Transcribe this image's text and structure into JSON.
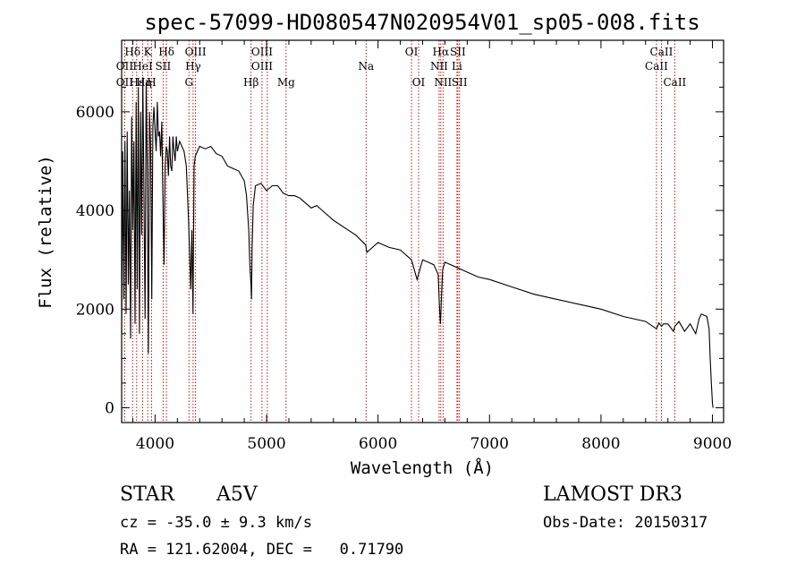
{
  "chart_data": {
    "type": "line",
    "title": "spec-57099-HD080547N020954V01_sp05-008.fits",
    "xlabel": "Wavelength (Å)",
    "ylabel": "Flux (relative)",
    "xlim": [
      3700,
      9100
    ],
    "ylim": [
      -300,
      7450
    ],
    "x_ticks": [
      4000,
      5000,
      6000,
      7000,
      8000,
      9000
    ],
    "x_tick_labels": [
      "4000",
      "5000",
      "6000",
      "7000",
      "8000",
      "9000"
    ],
    "y_ticks": [
      0,
      2000,
      4000,
      6000
    ],
    "y_tick_labels": [
      "0",
      "2000",
      "4000",
      "6000"
    ],
    "grid": false,
    "series": [
      {
        "name": "flux",
        "color": "#000000",
        "x": [
          3700,
          3710,
          3720,
          3730,
          3740,
          3750,
          3760,
          3770,
          3780,
          3790,
          3800,
          3810,
          3820,
          3830,
          3840,
          3850,
          3860,
          3870,
          3880,
          3890,
          3900,
          3910,
          3920,
          3930,
          3940,
          3950,
          3960,
          3970,
          3980,
          3990,
          4000,
          4010,
          4020,
          4030,
          4040,
          4050,
          4060,
          4070,
          4080,
          4090,
          4100,
          4110,
          4120,
          4130,
          4140,
          4150,
          4160,
          4170,
          4180,
          4190,
          4200,
          4220,
          4240,
          4260,
          4280,
          4300,
          4320,
          4330,
          4340,
          4345,
          4350,
          4360,
          4380,
          4400,
          4450,
          4500,
          4550,
          4600,
          4650,
          4700,
          4750,
          4800,
          4820,
          4840,
          4850,
          4860,
          4865,
          4870,
          4880,
          4900,
          4950,
          5000,
          5050,
          5100,
          5150,
          5200,
          5250,
          5300,
          5350,
          5400,
          5450,
          5500,
          5600,
          5700,
          5800,
          5890,
          5900,
          6000,
          6100,
          6200,
          6300,
          6350,
          6400,
          6450,
          6500,
          6540,
          6550,
          6560,
          6570,
          6580,
          6600,
          6700,
          6800,
          6900,
          7000,
          7200,
          7400,
          7600,
          7800,
          8000,
          8200,
          8400,
          8498,
          8520,
          8542,
          8560,
          8600,
          8650,
          8662,
          8700,
          8750,
          8800,
          8850,
          8880,
          8900,
          8950,
          8970,
          8980,
          8990,
          9000,
          9005
        ],
        "y": [
          1500,
          5200,
          2200,
          5400,
          1900,
          5600,
          2500,
          4400,
          1400,
          5900,
          3600,
          5400,
          1700,
          6200,
          2400,
          6500,
          1500,
          6000,
          3500,
          6700,
          4400,
          1800,
          6600,
          4800,
          1100,
          6000,
          5300,
          2200,
          5700,
          6100,
          5600,
          5200,
          6200,
          5500,
          5600,
          5100,
          5800,
          4300,
          2900,
          4900,
          5300,
          5200,
          4700,
          5500,
          4900,
          4800,
          5500,
          5200,
          5000,
          5500,
          5200,
          5400,
          5300,
          5200,
          4900,
          3800,
          2400,
          3600,
          1900,
          3400,
          4900,
          5100,
          5200,
          5300,
          5250,
          5300,
          5150,
          5100,
          4900,
          4850,
          4800,
          4600,
          4300,
          3600,
          2900,
          2500,
          2200,
          3200,
          4100,
          4500,
          4550,
          4400,
          4500,
          4500,
          4350,
          4300,
          4300,
          4250,
          4150,
          4050,
          4100,
          4000,
          3800,
          3650,
          3500,
          3300,
          3150,
          3350,
          3250,
          3200,
          3000,
          2600,
          3000,
          2950,
          2900,
          2700,
          2100,
          1700,
          2300,
          2800,
          2950,
          2850,
          2750,
          2650,
          2600,
          2450,
          2300,
          2200,
          2100,
          2000,
          1850,
          1750,
          1600,
          1720,
          1650,
          1700,
          1700,
          1550,
          1650,
          1750,
          1550,
          1700,
          1500,
          1800,
          1900,
          1850,
          1600,
          1000,
          500,
          100,
          0
        ]
      }
    ],
    "line_markers": [
      {
        "label": "Hδ",
        "x": 3798,
        "row": 1
      },
      {
        "label": "OII",
        "x": 3727,
        "row": 2
      },
      {
        "label": "OII",
        "x": 3727,
        "row": 3
      },
      {
        "label": "Hε",
        "x": 3835,
        "row": 3
      },
      {
        "label": "HeI",
        "x": 3889,
        "row": 2
      },
      {
        "label": "Hη",
        "x": 3900,
        "row": 3
      },
      {
        "label": "K",
        "x": 3934,
        "row": 1
      },
      {
        "label": "H",
        "x": 3969,
        "row": 3
      },
      {
        "label": "SII",
        "x": 4072,
        "row": 2
      },
      {
        "label": "Hδ",
        "x": 4102,
        "row": 1
      },
      {
        "label": "OIII",
        "x": 4363,
        "row": 1
      },
      {
        "label": "Hγ",
        "x": 4341,
        "row": 2
      },
      {
        "label": "G",
        "x": 4304,
        "row": 3
      },
      {
        "label": "Hβ",
        "x": 4861,
        "row": 3
      },
      {
        "label": "OIII",
        "x": 4959,
        "row": 1
      },
      {
        "label": "OIII",
        "x": 4959,
        "row": 2
      },
      {
        "label": "Mg",
        "x": 5175,
        "row": 3
      },
      {
        "label": "Na",
        "x": 5893,
        "row": 2
      },
      {
        "label": "OI",
        "x": 6300,
        "row": 1
      },
      {
        "label": "OI",
        "x": 6364,
        "row": 3
      },
      {
        "label": "Hα",
        "x": 6563,
        "row": 1
      },
      {
        "label": "SII",
        "x": 6716,
        "row": 1
      },
      {
        "label": "NII",
        "x": 6548,
        "row": 2
      },
      {
        "label": "Li",
        "x": 6708,
        "row": 2
      },
      {
        "label": "NII",
        "x": 6583,
        "row": 3
      },
      {
        "label": "SII",
        "x": 6731,
        "row": 3
      },
      {
        "label": "CaII",
        "x": 8542,
        "row": 1
      },
      {
        "label": "CaII",
        "x": 8498,
        "row": 2
      },
      {
        "label": "CaII",
        "x": 8662,
        "row": 3
      }
    ],
    "marker_lines_x": [
      3727,
      3798,
      3835,
      3889,
      3934,
      3969,
      4072,
      4102,
      4304,
      4341,
      4363,
      4861,
      4959,
      5007,
      5175,
      5893,
      6300,
      6364,
      6548,
      6563,
      6583,
      6708,
      6716,
      6731,
      8498,
      8542,
      8662
    ],
    "marker_color": "#b00000"
  },
  "info": {
    "object_type": "STAR",
    "subclass": "A5V",
    "survey": "LAMOST DR3",
    "cz": "cz = -35.0 ± 9.3 km/s",
    "obs_date": "Obs-Date: 20150317",
    "coords": "RA = 121.62004, DEC =   0.71790"
  }
}
